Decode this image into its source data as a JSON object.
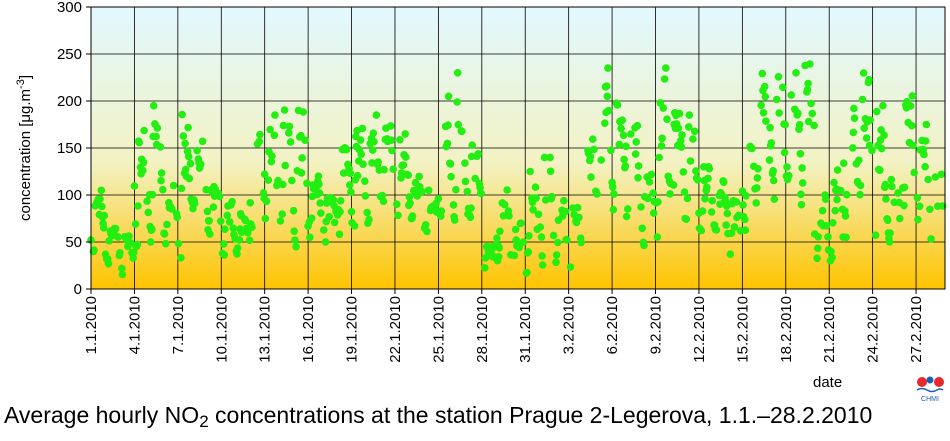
{
  "caption": {
    "before": "Average hourly NO",
    "sub": "2",
    "after": " concentrations at the station Prague 2-Legerova, 1.1.–28.2.2010"
  },
  "logo": {
    "text": "CHMI"
  },
  "chart_data": {
    "type": "scatter",
    "title": "Average hourly NO2 concentrations at the station Prague 2-Legerova, 1.1.–28.2.2010",
    "xlabel": "date",
    "ylabel": "concentration [μg.m-3]",
    "ylim": [
      0,
      300
    ],
    "yticks": [
      0,
      50,
      100,
      150,
      200,
      250,
      300
    ],
    "xlim": [
      "2010-01-01",
      "2010-03-01"
    ],
    "xticks": [
      "1.1.2010",
      "4.1.2010",
      "7.1.2010",
      "10.1.2010",
      "13.1.2010",
      "16.1.2010",
      "19.1.2010",
      "22.1.2010",
      "25.1.2010",
      "28.1.2010",
      "31.1.2010",
      "3.2.2010",
      "6.2.2010",
      "9.2.2010",
      "12.2.2010",
      "15.2.2010",
      "18.2.2010",
      "21.2.2010",
      "24.2.2010",
      "27.2.2010"
    ],
    "grid": true,
    "marker_color": "#22ee11",
    "background_gradient": [
      "#e2f8ff",
      "#f2f2c4",
      "#ffc400"
    ],
    "series": [
      {
        "daily_profile": [
          [
            "1.1.",
            40,
            105
          ],
          [
            "2.1.",
            25,
            70
          ],
          [
            "3.1.",
            15,
            60
          ],
          [
            "4.1.",
            45,
            170
          ],
          [
            "5.1.",
            50,
            195
          ],
          [
            "6.1.",
            40,
            110
          ],
          [
            "7.1.",
            25,
            195
          ],
          [
            "8.1.",
            70,
            165
          ],
          [
            "9.1.",
            55,
            120
          ],
          [
            "10.1.",
            35,
            100
          ],
          [
            "11.1.",
            35,
            80
          ],
          [
            "12.1.",
            55,
            180
          ],
          [
            "13.1.",
            60,
            185
          ],
          [
            "14.1.",
            45,
            205
          ],
          [
            "15.1.",
            45,
            190
          ],
          [
            "16.1.",
            55,
            120
          ],
          [
            "17.1.",
            50,
            105
          ],
          [
            "18.1.",
            55,
            165
          ],
          [
            "19.1.",
            60,
            175
          ],
          [
            "20.1.",
            70,
            185
          ],
          [
            "21.1.",
            70,
            180
          ],
          [
            "22.1.",
            60,
            165
          ],
          [
            "23.1.",
            75,
            120
          ],
          [
            "24.1.",
            60,
            105
          ],
          [
            "25.1.",
            50,
            205
          ],
          [
            "26.1.",
            55,
            230
          ],
          [
            "27.1.",
            50,
            160
          ],
          [
            "28.1.",
            20,
            45
          ],
          [
            "29.1.",
            25,
            110
          ],
          [
            "30.1.",
            10,
            70
          ],
          [
            "31.1.",
            15,
            125
          ],
          [
            "1.2.",
            20,
            140
          ],
          [
            "2.2.",
            20,
            105
          ],
          [
            "3.2.",
            20,
            90
          ],
          [
            "4.2.",
            50,
            175
          ],
          [
            "5.2.",
            90,
            235
          ],
          [
            "6.2.",
            80,
            210
          ],
          [
            "7.2.",
            50,
            190
          ],
          [
            "8.2.",
            40,
            140
          ],
          [
            "9.2.",
            50,
            235
          ],
          [
            "10.2.",
            70,
            210
          ],
          [
            "11.2.",
            60,
            185
          ],
          [
            "12.2.",
            50,
            130
          ],
          [
            "13.2.",
            45,
            115
          ],
          [
            "14.2.",
            35,
            100
          ],
          [
            "15.2.",
            60,
            180
          ],
          [
            "16.2.",
            70,
            240
          ],
          [
            "17.2.",
            80,
            255
          ],
          [
            "18.2.",
            110,
            230
          ],
          [
            "19.2.",
            80,
            250
          ],
          [
            "20.2.",
            20,
            100
          ],
          [
            "21.2.",
            20,
            140
          ],
          [
            "22.2.",
            55,
            210
          ],
          [
            "23.2.",
            70,
            235
          ],
          [
            "24.2.",
            40,
            195
          ],
          [
            "25.2.",
            50,
            120
          ],
          [
            "26.2.",
            75,
            210
          ],
          [
            "27.2.",
            55,
            175
          ],
          [
            "28.2.",
            15,
            145
          ]
        ]
      }
    ]
  }
}
